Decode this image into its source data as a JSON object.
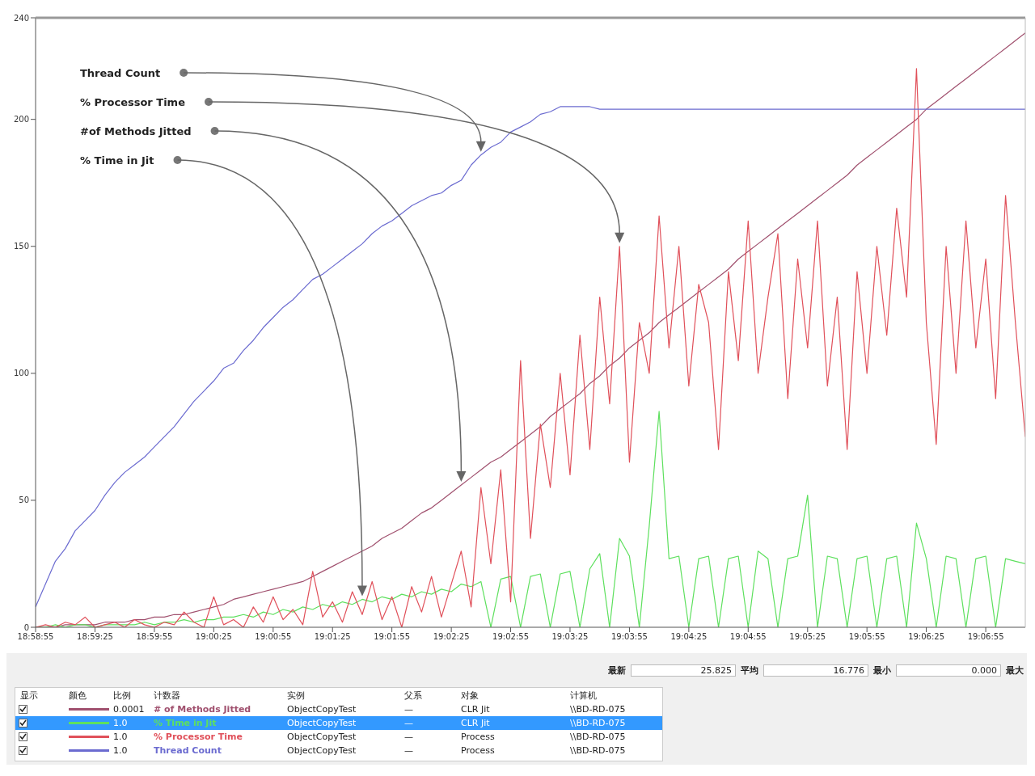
{
  "chart_data": {
    "type": "line",
    "x": [
      18.98194,
      18.98333,
      18.98472,
      18.98611,
      18.9875,
      18.98889,
      18.99028,
      18.99167,
      18.99306,
      18.99444,
      18.99583,
      18.99722,
      18.99861,
      19.0,
      19.00139,
      19.00278,
      19.00417,
      19.00556,
      19.00694,
      19.00833,
      19.00972,
      19.01111,
      19.0125,
      19.01389,
      19.01528,
      19.01667,
      19.01806,
      19.01944,
      19.02083,
      19.02222,
      19.02361,
      19.025,
      19.02639,
      19.02778,
      19.02917,
      19.03056,
      19.03194,
      19.03333,
      19.03472,
      19.03611,
      19.0375,
      19.03889,
      19.04028,
      19.04167,
      19.04306,
      19.04444,
      19.04583,
      19.04722,
      19.04861,
      19.05,
      19.05139,
      19.05278,
      19.05417,
      19.05556,
      19.05694,
      19.05833,
      19.05972,
      19.06111,
      19.0625,
      19.06389,
      19.06528,
      19.06667,
      19.06806,
      19.06944,
      19.07083,
      19.07222,
      19.07361,
      19.075,
      19.07639,
      19.07778,
      19.07917,
      19.08056,
      19.08194,
      19.08333,
      19.08472,
      19.08611,
      19.0875,
      19.08889,
      19.09028,
      19.09167,
      19.09306,
      19.09444,
      19.09583,
      19.09722,
      19.09861,
      19.1,
      19.10139,
      19.10278,
      19.10417,
      19.10556,
      19.10694,
      19.10833,
      19.10972,
      19.11111,
      19.1125,
      19.11389,
      19.11528,
      19.11667,
      19.11806,
      19.11944,
      19.12083
    ],
    "xlim": [
      18.98194,
      19.12083
    ],
    "xticks": [
      {
        "value": 18.98194,
        "label": "18:58:55"
      },
      {
        "value": 18.99028,
        "label": "18:59:25"
      },
      {
        "value": 18.99861,
        "label": "18:59:55"
      },
      {
        "value": 19.00694,
        "label": "19:00:25"
      },
      {
        "value": 19.01528,
        "label": "19:00:55"
      },
      {
        "value": 19.02361,
        "label": "19:01:25"
      },
      {
        "value": 19.03194,
        "label": "19:01:55"
      },
      {
        "value": 19.04028,
        "label": "19:02:25"
      },
      {
        "value": 19.04861,
        "label": "19:02:55"
      },
      {
        "value": 19.05694,
        "label": "19:03:25"
      },
      {
        "value": 19.06528,
        "label": "19:03:55"
      },
      {
        "value": 19.07361,
        "label": "19:04:25"
      },
      {
        "value": 19.08194,
        "label": "19:04:55"
      },
      {
        "value": 19.09028,
        "label": "19:05:25"
      },
      {
        "value": 19.09861,
        "label": "19:05:55"
      },
      {
        "value": 19.10694,
        "label": "19:06:25"
      },
      {
        "value": 19.11528,
        "label": "19:06:55"
      }
    ],
    "ylim": [
      0,
      240
    ],
    "yticks": [
      0,
      50,
      100,
      150,
      200,
      240
    ],
    "legend": "bottom",
    "marker": "none",
    "line_style": "solid",
    "annotations": [
      "Thread Count",
      "% Processor Time",
      "#of Methods Jitted",
      "% Time in Jit",
      "最新",
      "25.825",
      "平均",
      "16.776",
      "最小",
      "0.000",
      "最大",
      "显示",
      "颜色",
      "比例",
      "计数器",
      "实例",
      "父系",
      "对象",
      "计算机",
      "0.0001",
      "ObjectCopyTest",
      "—",
      "CLR Jit",
      "\\\\BD-RD-075",
      "1.0",
      "ObjectCopyTest",
      "—",
      "CLR Jit",
      "\\\\BD-RD-075",
      "1.0",
      "ObjectCopyTest",
      "—",
      "Process",
      "\\\\BD-RD-075",
      "1.0",
      "ObjectCopyTest",
      "—",
      "Process",
      "\\\\BD-RD-075"
    ],
    "series": [
      {
        "name": "# of Methods Jitted",
        "color": "#a0506e",
        "values": [
          0,
          0,
          0,
          1,
          1,
          1,
          1,
          2,
          2,
          2,
          3,
          3,
          4,
          4,
          5,
          5,
          6,
          7,
          8,
          9,
          11,
          12,
          13,
          14,
          15,
          16,
          17,
          18,
          20,
          22,
          24,
          26,
          28,
          30,
          32,
          35,
          37,
          39,
          42,
          45,
          47,
          50,
          53,
          56,
          59,
          62,
          65,
          67,
          70,
          73,
          76,
          79,
          83,
          86,
          89,
          92,
          96,
          99,
          103,
          106,
          110,
          113,
          116,
          120,
          123,
          126,
          129,
          132,
          135,
          138,
          141,
          145,
          148,
          151,
          154,
          157,
          160,
          163,
          166,
          169,
          172,
          175,
          178,
          182,
          185,
          188,
          191,
          194,
          197,
          200,
          204,
          207,
          210,
          213,
          216,
          219,
          222,
          225,
          228,
          231,
          234
        ]
      },
      {
        "name": "% Time in Jit",
        "color": "#5ee05e",
        "values": [
          0,
          0,
          1,
          0,
          1,
          1,
          0,
          1,
          1,
          1,
          1,
          2,
          1,
          2,
          2,
          3,
          2,
          3,
          3,
          4,
          4,
          5,
          4,
          6,
          5,
          7,
          6,
          8,
          7,
          9,
          8,
          10,
          9,
          11,
          10,
          12,
          11,
          13,
          12,
          14,
          13,
          15,
          14,
          17,
          16,
          18,
          0,
          19,
          20,
          0,
          20,
          21,
          0,
          21,
          22,
          0,
          23,
          29,
          0,
          35,
          28,
          0,
          40,
          85,
          27,
          28,
          0,
          27,
          28,
          0,
          27,
          28,
          0,
          30,
          27,
          0,
          27,
          28,
          52,
          0,
          28,
          27,
          0,
          27,
          28,
          0,
          27,
          28,
          0,
          41,
          27,
          0,
          28,
          27,
          0,
          27,
          28,
          0,
          27,
          26,
          25
        ]
      },
      {
        "name": "% Processor Time",
        "color": "#e0505a",
        "values": [
          0,
          1,
          0,
          2,
          1,
          4,
          0,
          1,
          2,
          0,
          3,
          1,
          0,
          2,
          1,
          6,
          2,
          0,
          12,
          1,
          3,
          0,
          8,
          2,
          12,
          3,
          7,
          1,
          22,
          4,
          10,
          2,
          14,
          5,
          18,
          3,
          12,
          0,
          16,
          6,
          20,
          4,
          17,
          30,
          8,
          55,
          25,
          62,
          10,
          105,
          35,
          80,
          55,
          100,
          60,
          115,
          70,
          130,
          88,
          150,
          65,
          120,
          100,
          162,
          110,
          150,
          95,
          135,
          120,
          70,
          140,
          105,
          160,
          100,
          130,
          155,
          90,
          145,
          110,
          160,
          95,
          130,
          70,
          140,
          100,
          150,
          115,
          165,
          130,
          220,
          120,
          72,
          150,
          100,
          160,
          110,
          145,
          90,
          170,
          120,
          75
        ]
      },
      {
        "name": "Thread Count",
        "color": "#6b6bd0",
        "values": [
          8,
          17,
          26,
          31,
          38,
          42,
          46,
          52,
          57,
          61,
          64,
          67,
          71,
          75,
          79,
          84,
          89,
          93,
          97,
          102,
          104,
          109,
          113,
          118,
          122,
          126,
          129,
          133,
          137,
          139,
          142,
          145,
          148,
          151,
          155,
          158,
          160,
          163,
          166,
          168,
          170,
          171,
          174,
          176,
          182,
          186,
          189,
          191,
          195,
          197,
          199,
          202,
          203,
          205,
          205,
          205,
          205,
          204,
          204,
          204,
          204,
          204,
          204,
          204,
          204,
          204,
          204,
          204,
          204,
          204,
          204,
          204,
          204,
          204,
          204,
          204,
          204,
          204,
          204,
          204,
          204,
          204,
          204,
          204,
          204,
          204,
          204,
          204,
          204,
          204,
          204,
          204,
          204,
          204,
          204,
          204,
          204,
          204,
          204,
          204,
          204
        ]
      }
    ]
  }
}
